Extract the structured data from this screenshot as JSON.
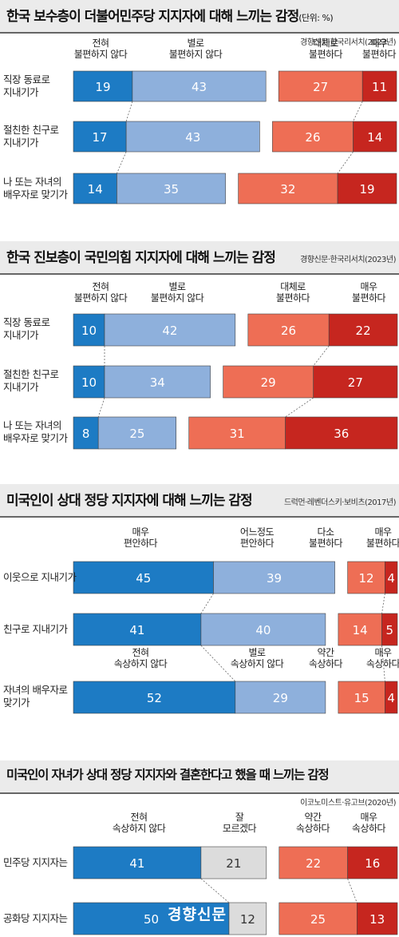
{
  "colors": {
    "strong_neg": "#1d7bc4",
    "mild_neg": "#8eb0dc",
    "neutral": "#dcdcdc",
    "mild_pos": "#ee6e55",
    "strong_pos": "#c6261f"
  },
  "chart_data": [
    {
      "type": "bar",
      "title": "한국 보수층이 더불어민주당 지지자에 대해 느끼는 감정",
      "unit": "(단위: %)",
      "source": "경향신문·한국리서치(2023년)",
      "categories": [
        "전혀\n불편하지 않다",
        "별로\n불편하지 않다",
        "대체로\n불편하다",
        "매우\n불편하다"
      ],
      "rows": [
        {
          "label": "직장 동료로\n지내기가",
          "values": [
            19,
            43,
            27,
            11
          ]
        },
        {
          "label": "절친한 친구로\n지내기가",
          "values": [
            17,
            43,
            26,
            14
          ]
        },
        {
          "label": "나 또는 자녀의\n배우자로 맞기가",
          "values": [
            14,
            35,
            32,
            19
          ]
        }
      ]
    },
    {
      "type": "bar",
      "title": "한국 진보층이 국민의힘 지지자에 대해 느끼는 감정",
      "source": "경향신문·한국리서치(2023년)",
      "categories": [
        "전혀\n불편하지 않다",
        "별로\n불편하지 않다",
        "대체로\n불편하다",
        "매우\n불편하다"
      ],
      "rows": [
        {
          "label": "직장 동료로\n지내기가",
          "values": [
            10,
            42,
            26,
            22
          ]
        },
        {
          "label": "절친한 친구로\n지내기가",
          "values": [
            10,
            34,
            29,
            27
          ]
        },
        {
          "label": "나 또는 자녀의\n배우자로 맞기가",
          "values": [
            8,
            25,
            31,
            36
          ]
        }
      ]
    },
    {
      "type": "bar",
      "title": "미국인이 상대 정당 지지자에 대해 느끼는 감정",
      "source": "드럭먼·레벤더스키·보비츠(2017년)",
      "categories": [
        "매우\n편안하다",
        "어느정도\n편안하다",
        "다소\n불편하다",
        "매우\n불편하다"
      ],
      "categories_row3": [
        "전혀\n속상하지 않다",
        "별로\n속상하지 않다",
        "약간\n속상하다",
        "매우\n속상하다"
      ],
      "rows": [
        {
          "label": "이웃으로 지내기가",
          "values": [
            45,
            39,
            12,
            4
          ]
        },
        {
          "label": "친구로 지내기가",
          "values": [
            41,
            40,
            14,
            5
          ]
        },
        {
          "label": "자녀의 배우자로\n맞기가",
          "values": [
            52,
            29,
            15,
            4
          ]
        }
      ]
    },
    {
      "type": "bar",
      "title": "미국인이 자녀가 상대 정당 지지자와 결혼한다고 했을 때 느끼는 감정",
      "source": "이코노미스트·유고브(2020년)",
      "categories": [
        "전혀\n속상하지 않다",
        "잘\n모르겠다",
        "약간\n속상하다",
        "매우\n속상하다"
      ],
      "rows": [
        {
          "label": "민주당 지지자는",
          "values": [
            41,
            21,
            22,
            16
          ]
        },
        {
          "label": "공화당 지지자는",
          "values": [
            50,
            12,
            25,
            13
          ]
        }
      ]
    }
  ],
  "watermark": "경향신문"
}
